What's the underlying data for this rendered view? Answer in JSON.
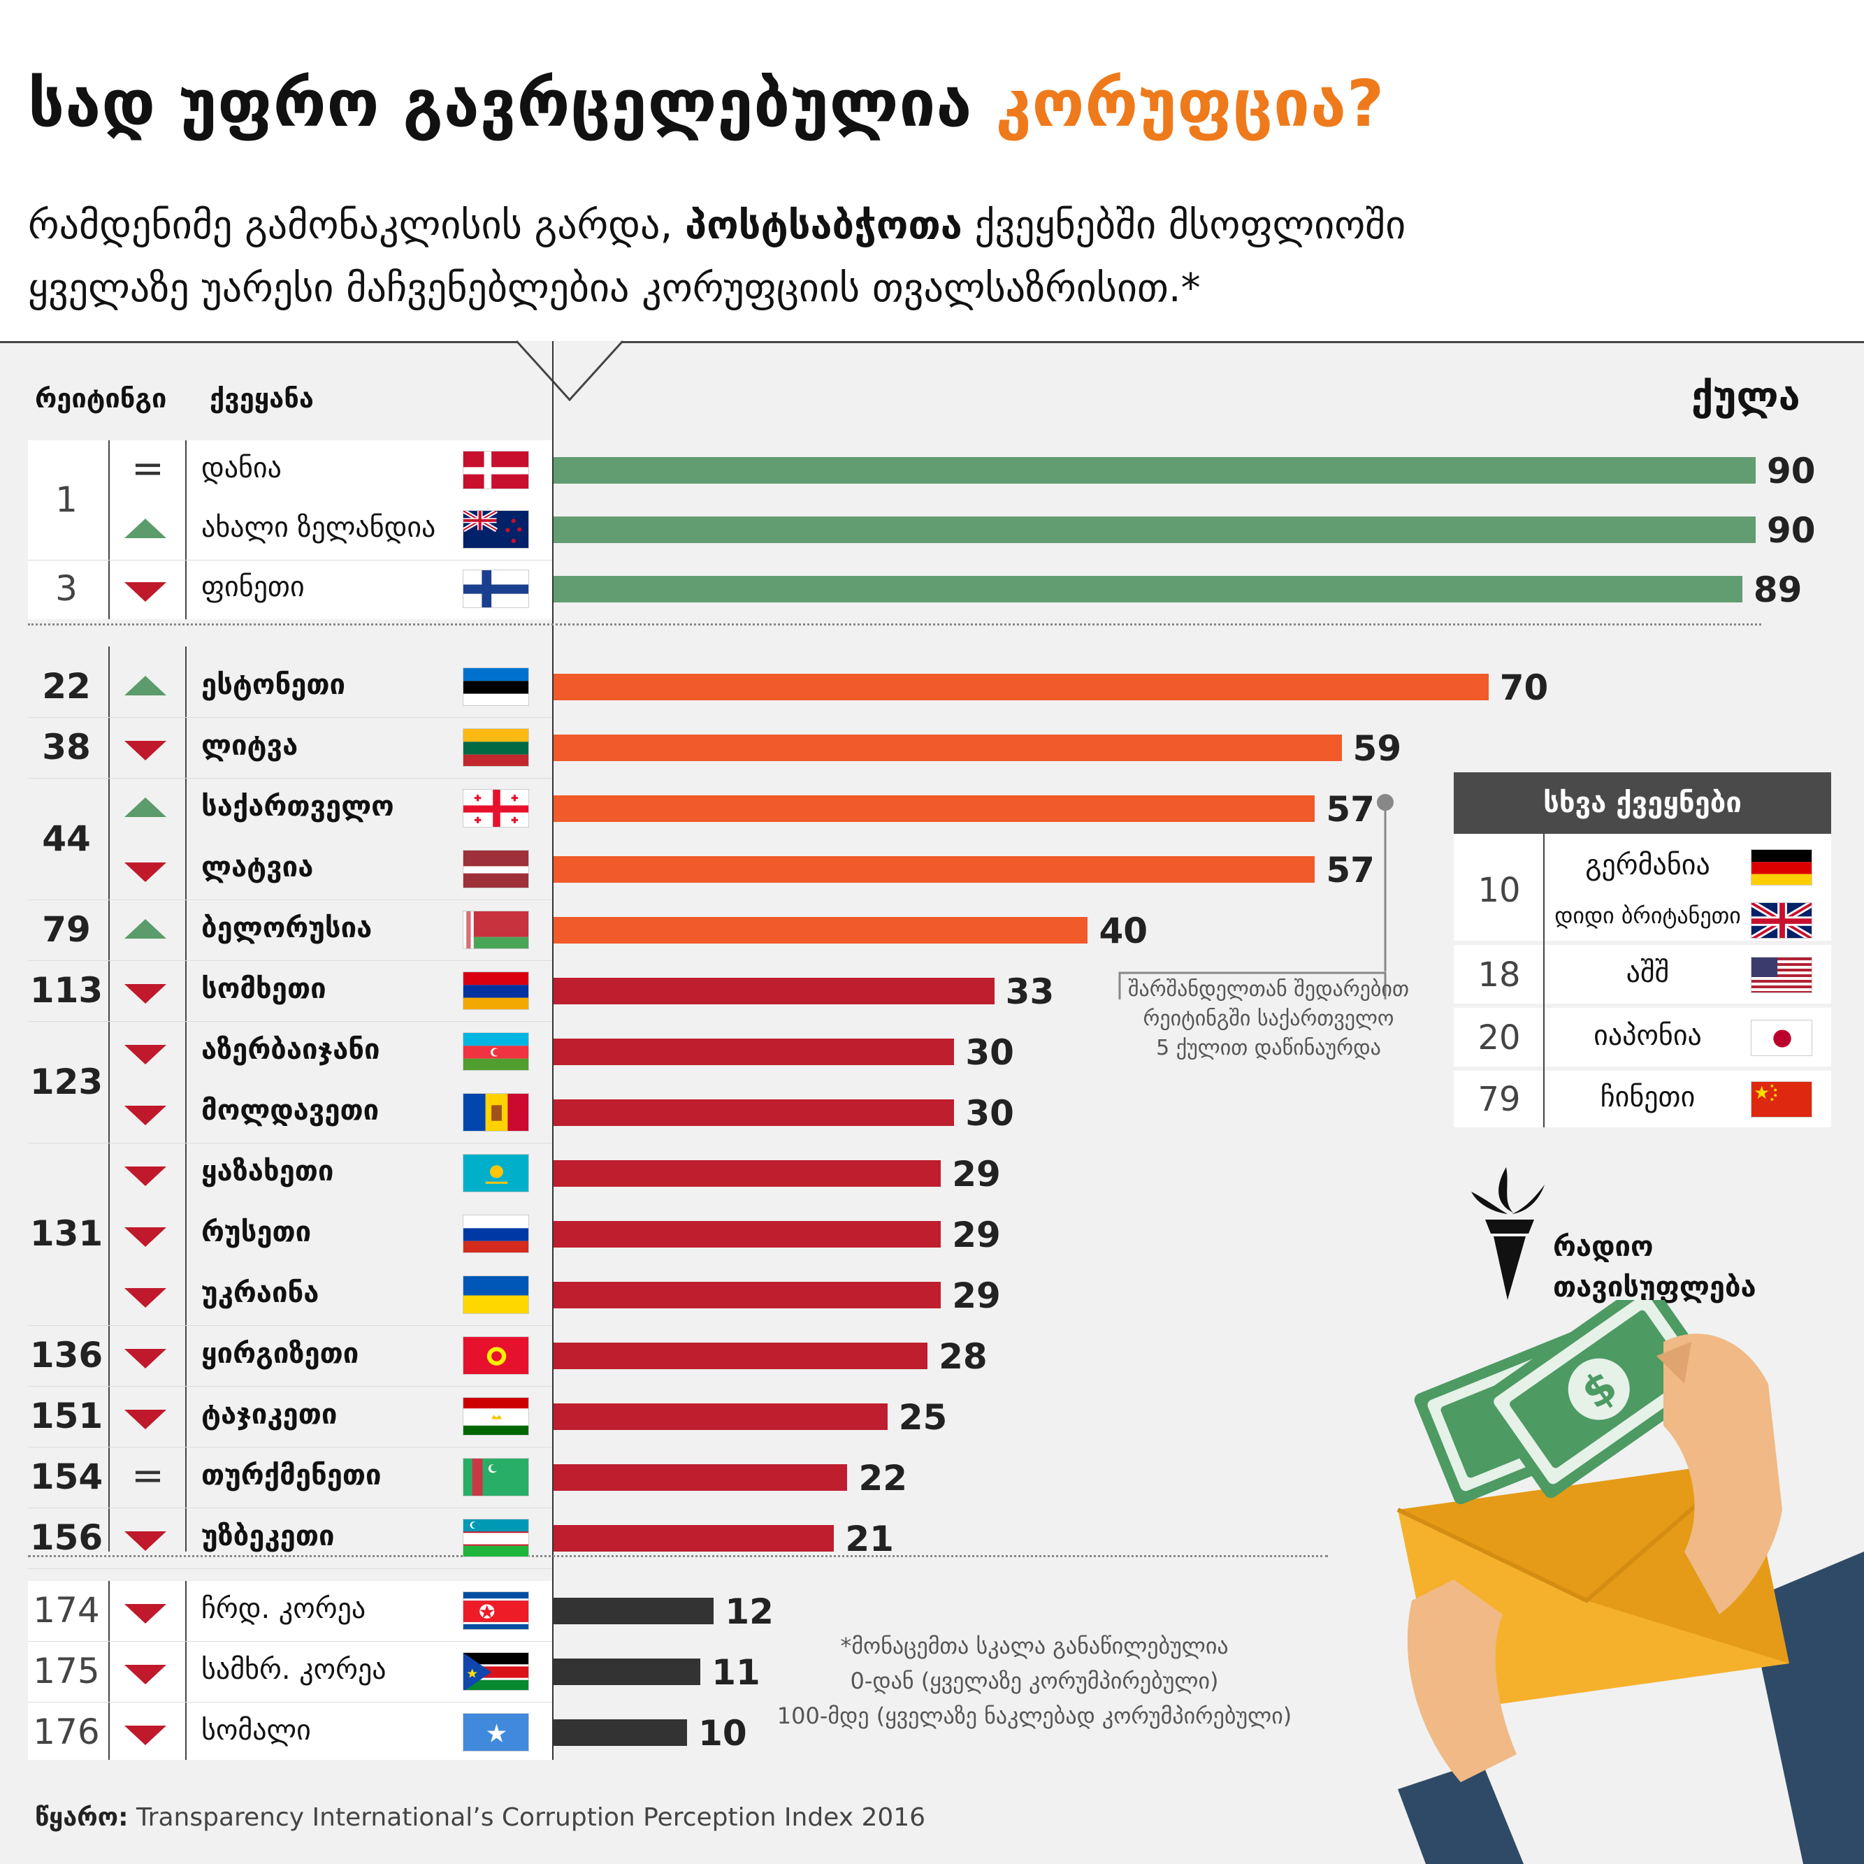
{
  "header": {
    "title_main": "სად უფრო გავრცელებულია",
    "title_accent": "კორუფცია?",
    "subtitle_part1": "რამდენიმე გამონაკლისის გარდა,",
    "subtitle_bold": "პოსტსაბჭოთა",
    "subtitle_part2": "ქვეყნებში მსოფლიოში",
    "subtitle_line2": "ყველაზე უარესი მაჩვენებლებია კორუფციის თვალსაზრისით.*"
  },
  "table_headers": {
    "rank": "რეიტინგი",
    "country": "ქვეყანა",
    "score": "ქულა"
  },
  "colors": {
    "green": "#629c71",
    "orange": "#f15a29",
    "red": "#be1e2d",
    "dark": "#333333",
    "accent": "#ee7a1c",
    "arrow_up": "#5c9b6c",
    "arrow_down": "#c0192c"
  },
  "chart_data": {
    "type": "bar",
    "orientation": "horizontal",
    "xlim": [
      0,
      90
    ],
    "grid": false,
    "rows": [
      {
        "country": "დანია",
        "score": 90,
        "change": "same",
        "group": "green",
        "flag": "denmark"
      },
      {
        "country": "ახალი ზელანდია",
        "score": 90,
        "change": "up",
        "group": "green",
        "flag": "new-zealand"
      },
      {
        "country": "ფინეთი",
        "score": 89,
        "change": "down",
        "group": "green",
        "flag": "finland"
      },
      {
        "country": "ესტონეთი",
        "score": 70,
        "change": "up",
        "group": "orange",
        "flag": "estonia"
      },
      {
        "country": "ლიტვა",
        "score": 59,
        "change": "down",
        "group": "orange",
        "flag": "lithuania"
      },
      {
        "country": "საქართველო",
        "score": 57,
        "change": "up",
        "group": "orange",
        "flag": "georgia"
      },
      {
        "country": "ლატვია",
        "score": 57,
        "change": "down",
        "group": "orange",
        "flag": "latvia"
      },
      {
        "country": "ბელორუსია",
        "score": 40,
        "change": "up",
        "group": "orange",
        "flag": "belarus"
      },
      {
        "country": "სომხეთი",
        "score": 33,
        "change": "down",
        "group": "red",
        "flag": "armenia"
      },
      {
        "country": "აზერბაიჯანი",
        "score": 30,
        "change": "down",
        "group": "red",
        "flag": "azerbaijan"
      },
      {
        "country": "მოლდავეთი",
        "score": 30,
        "change": "down",
        "group": "red",
        "flag": "moldova"
      },
      {
        "country": "ყაზახეთი",
        "score": 29,
        "change": "down",
        "group": "red",
        "flag": "kazakhstan"
      },
      {
        "country": "რუსეთი",
        "score": 29,
        "change": "down",
        "group": "red",
        "flag": "russia"
      },
      {
        "country": "უკრაინა",
        "score": 29,
        "change": "down",
        "group": "red",
        "flag": "ukraine"
      },
      {
        "country": "ყირგიზეთი",
        "score": 28,
        "change": "down",
        "group": "red",
        "flag": "kyrgyzstan"
      },
      {
        "country": "ტაჯიკეთი",
        "score": 25,
        "change": "down",
        "group": "red",
        "flag": "tajikistan"
      },
      {
        "country": "თურქმენეთი",
        "score": 22,
        "change": "same",
        "group": "red",
        "flag": "turkmenistan"
      },
      {
        "country": "უზბეკეთი",
        "score": 21,
        "change": "down",
        "group": "red",
        "flag": "uzbekistan"
      },
      {
        "country": "ჩრდ. კორეა",
        "score": 12,
        "change": "down",
        "group": "dark",
        "flag": "north-korea"
      },
      {
        "country": "სამხრ. კორეა",
        "score": 11,
        "change": "down",
        "group": "dark",
        "flag": "south-sudan"
      },
      {
        "country": "სომალი",
        "score": 10,
        "change": "down",
        "group": "dark",
        "flag": "somalia"
      }
    ],
    "rank_groups": [
      {
        "rank": "1",
        "rows": [
          0,
          1
        ]
      },
      {
        "rank": "3",
        "rows": [
          2
        ]
      },
      {
        "rank": "22",
        "rows": [
          3
        ]
      },
      {
        "rank": "38",
        "rows": [
          4
        ]
      },
      {
        "rank": "44",
        "rows": [
          5,
          6
        ]
      },
      {
        "rank": "79",
        "rows": [
          7
        ]
      },
      {
        "rank": "113",
        "rows": [
          8
        ]
      },
      {
        "rank": "123",
        "rows": [
          9,
          10
        ]
      },
      {
        "rank": "131",
        "rows": [
          11,
          12,
          13
        ]
      },
      {
        "rank": "136",
        "rows": [
          14
        ]
      },
      {
        "rank": "151",
        "rows": [
          15
        ]
      },
      {
        "rank": "154",
        "rows": [
          16
        ]
      },
      {
        "rank": "156",
        "rows": [
          17
        ]
      },
      {
        "rank": "174",
        "rows": [
          18
        ]
      },
      {
        "rank": "175",
        "rows": [
          19
        ]
      },
      {
        "rank": "176",
        "rows": [
          20
        ]
      }
    ]
  },
  "other_countries": {
    "title": "სხვა ქვეყნები",
    "items": [
      {
        "rank": "10",
        "country": "გერმანია",
        "flag": "germany"
      },
      {
        "rank": "",
        "country": "დიდი ბრიტანეთი",
        "flag": "uk"
      },
      {
        "rank": "18",
        "country": "აშშ",
        "flag": "usa"
      },
      {
        "rank": "20",
        "country": "იაპონია",
        "flag": "japan"
      },
      {
        "rank": "79",
        "country": "ჩინეთი",
        "flag": "china"
      }
    ]
  },
  "annotation": {
    "line1": "შარშანდელთან შედარებით",
    "line2": "რეიტინგში საქართველო",
    "line3": "5 ქულით დაწინაურდა"
  },
  "footnote": {
    "line1": "*მონაცემთა სკალა განაწილებულია",
    "line2": "0-დან (ყველაზე კორუმპირებული)",
    "line3": "100-მდე (ყველაზე ნაკლებად კორუმპირებული)"
  },
  "source": {
    "label": "წყარო:",
    "text": "Transparency International’s Corruption Perception Index 2016"
  },
  "logo": {
    "line1": "რადიო",
    "line2": "თავისუფლება"
  }
}
